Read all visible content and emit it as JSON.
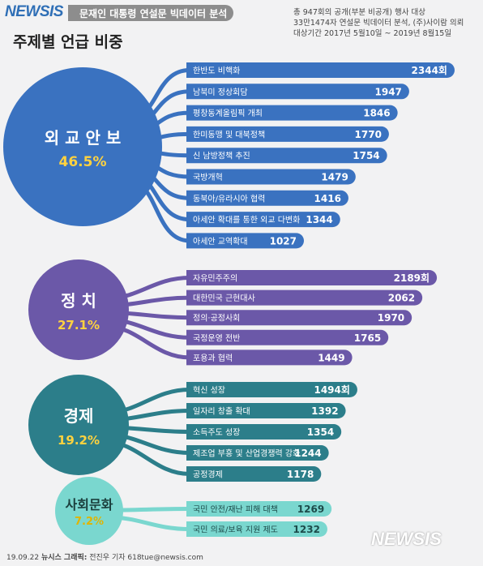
{
  "header": {
    "brand": "NEWSIS",
    "title": "문재인 대통령 연설문 빅데이터 분석"
  },
  "page_title": "주제별 언급 비중",
  "source_note": [
    "총 947회의 공개(부분 비공개) 행사 대상",
    "33만1474자 연설문 빅데이터 분석, (주)사이람 의뢰",
    "대상기간 2017년 5월10일 ~ 2019년 8월15일"
  ],
  "footer": {
    "date": "19.09.22",
    "credit_label": "뉴시스 그래픽:",
    "credit": "전진우 기자 618tue@newsis.com"
  },
  "watermark": "NEWSIS",
  "colors": {
    "diplomacy": "#3a72c0",
    "politics": "#6b58a8",
    "economy": "#2c7e8a",
    "culture": "#7ad7cf"
  },
  "chart_data": {
    "type": "bar",
    "title": "주제별 언급 비중",
    "unit": "회",
    "groups": [
      {
        "name": "외교안보",
        "share": "46.5%",
        "color": "#3a72c0",
        "items": [
          {
            "label": "한반도 비핵화",
            "value": 2344,
            "value_text": "2344회"
          },
          {
            "label": "남북미 정상회담",
            "value": 1947,
            "value_text": "1947"
          },
          {
            "label": "평창동계올림픽 개최",
            "value": 1846,
            "value_text": "1846"
          },
          {
            "label": "한미동맹 및 대북정책",
            "value": 1770,
            "value_text": "1770"
          },
          {
            "label": "신 남방정책 추진",
            "value": 1754,
            "value_text": "1754"
          },
          {
            "label": "국방개혁",
            "value": 1479,
            "value_text": "1479"
          },
          {
            "label": "동북아/유라시아 협력",
            "value": 1416,
            "value_text": "1416"
          },
          {
            "label": "아세안 확대를 통한 외교 다변화",
            "value": 1344,
            "value_text": "1344"
          },
          {
            "label": "아세안 교역확대",
            "value": 1027,
            "value_text": "1027"
          }
        ]
      },
      {
        "name": "정치",
        "share": "27.1%",
        "color": "#6b58a8",
        "items": [
          {
            "label": "자유민주주의",
            "value": 2189,
            "value_text": "2189회"
          },
          {
            "label": "대한민국 근현대사",
            "value": 2062,
            "value_text": "2062"
          },
          {
            "label": "정의·공정사회",
            "value": 1970,
            "value_text": "1970"
          },
          {
            "label": "국정운영 전반",
            "value": 1765,
            "value_text": "1765"
          },
          {
            "label": "포용과 협력",
            "value": 1449,
            "value_text": "1449"
          }
        ]
      },
      {
        "name": "경제",
        "share": "19.2%",
        "color": "#2c7e8a",
        "items": [
          {
            "label": "혁신 성장",
            "value": 1494,
            "value_text": "1494회"
          },
          {
            "label": "일자리 창출 확대",
            "value": 1392,
            "value_text": "1392"
          },
          {
            "label": "소득주도 성장",
            "value": 1354,
            "value_text": "1354"
          },
          {
            "label": "제조업 부흥 및 산업경쟁력 강화",
            "value": 1244,
            "value_text": "1244"
          },
          {
            "label": "공정경제",
            "value": 1178,
            "value_text": "1178"
          }
        ]
      },
      {
        "name": "사회문화",
        "share": "7.2%",
        "color": "#7ad7cf",
        "items": [
          {
            "label": "국민 안전/재난 피해 대책",
            "value": 1269,
            "value_text": "1269"
          },
          {
            "label": "국민 의료/보육 지원 제도",
            "value": 1232,
            "value_text": "1232"
          }
        ]
      }
    ]
  }
}
